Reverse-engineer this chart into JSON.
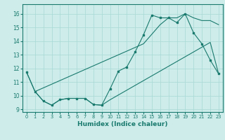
{
  "xlabel": "Humidex (Indice chaleur)",
  "xlim": [
    -0.5,
    23.5
  ],
  "ylim": [
    8.8,
    16.7
  ],
  "yticks": [
    9,
    10,
    11,
    12,
    13,
    14,
    15,
    16
  ],
  "xticks": [
    0,
    1,
    2,
    3,
    4,
    5,
    6,
    7,
    8,
    9,
    10,
    11,
    12,
    13,
    14,
    15,
    16,
    17,
    18,
    19,
    20,
    21,
    22,
    23
  ],
  "line_color": "#1a7a6e",
  "bg_color": "#cdecea",
  "grid_color": "#a8d8d4",
  "line1_x": [
    0,
    1,
    2,
    3,
    4,
    5,
    6,
    7,
    8,
    9,
    10,
    11,
    12,
    13,
    14,
    15,
    16,
    17,
    18,
    19,
    20,
    21,
    22,
    23
  ],
  "line1_y": [
    11.7,
    10.3,
    9.6,
    9.3,
    9.7,
    9.8,
    9.8,
    9.8,
    9.35,
    9.3,
    10.5,
    11.8,
    12.1,
    13.2,
    14.45,
    15.9,
    15.7,
    15.7,
    15.35,
    16.0,
    14.6,
    13.8,
    12.6,
    11.6
  ],
  "line2_x": [
    0,
    1,
    14,
    15,
    16,
    17,
    18,
    19,
    20,
    21,
    22,
    23
  ],
  "line2_y": [
    11.7,
    10.3,
    13.8,
    14.5,
    15.2,
    15.7,
    15.7,
    16.0,
    15.7,
    15.5,
    15.5,
    15.2
  ],
  "line3_x": [
    1,
    2,
    3,
    4,
    5,
    6,
    7,
    8,
    9,
    10,
    11,
    12,
    13,
    14,
    15,
    16,
    17,
    18,
    19,
    20,
    21,
    22,
    23
  ],
  "line3_y": [
    10.3,
    9.6,
    9.3,
    9.7,
    9.8,
    9.8,
    9.8,
    9.35,
    9.3,
    9.7,
    10.05,
    10.4,
    10.75,
    11.1,
    11.45,
    11.8,
    12.15,
    12.5,
    12.85,
    13.2,
    13.55,
    13.9,
    11.6
  ]
}
